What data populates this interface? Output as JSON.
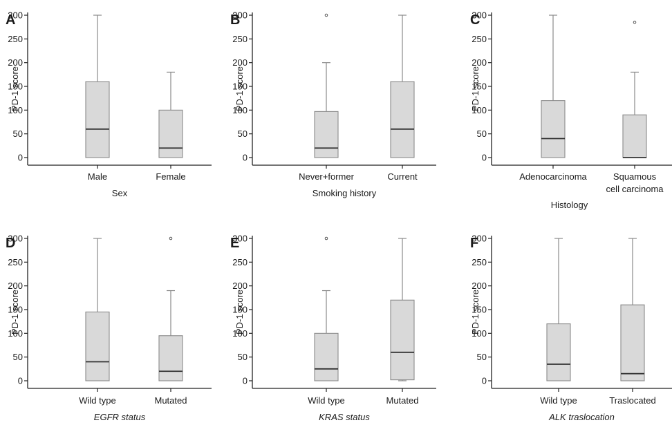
{
  "figure": {
    "background": "#ffffff",
    "box_fill": "#d9d9d9",
    "box_stroke": "#8a8a8a",
    "median_color": "#333333",
    "axis_color": "#222222"
  },
  "chart_data": [
    {
      "panel": "A",
      "type": "box",
      "ylabel": "PD-1 score",
      "xlabel": "Sex",
      "xlabel_italic": false,
      "ylim": [
        0,
        300
      ],
      "yticks": [
        0,
        50,
        100,
        150,
        200,
        250,
        300
      ],
      "categories": [
        {
          "label": [
            "Male"
          ],
          "min": 0,
          "q1": 0,
          "median": 60,
          "q3": 160,
          "max": 300,
          "outliers": []
        },
        {
          "label": [
            "Female"
          ],
          "min": 0,
          "q1": 0,
          "median": 20,
          "q3": 100,
          "max": 180,
          "outliers": []
        }
      ]
    },
    {
      "panel": "B",
      "type": "box",
      "ylabel": "PD-1 score",
      "xlabel": "Smoking history",
      "xlabel_italic": false,
      "ylim": [
        0,
        300
      ],
      "yticks": [
        0,
        50,
        100,
        150,
        200,
        250,
        300
      ],
      "categories": [
        {
          "label": [
            "Never+former"
          ],
          "min": 0,
          "q1": 0,
          "median": 20,
          "q3": 97,
          "max": 200,
          "outliers": [
            300
          ]
        },
        {
          "label": [
            "Current"
          ],
          "min": 0,
          "q1": 0,
          "median": 60,
          "q3": 160,
          "max": 300,
          "outliers": []
        }
      ]
    },
    {
      "panel": "C",
      "type": "box",
      "ylabel": "PD-1 score",
      "xlabel": "Histology",
      "xlabel_italic": false,
      "ylim": [
        0,
        300
      ],
      "yticks": [
        0,
        50,
        100,
        150,
        200,
        250,
        300
      ],
      "categories": [
        {
          "label": [
            "Adenocarcinoma"
          ],
          "min": 0,
          "q1": 0,
          "median": 40,
          "q3": 120,
          "max": 300,
          "outliers": []
        },
        {
          "label": [
            "Squamous",
            "cell carcinoma"
          ],
          "min": 0,
          "q1": 0,
          "median": 0,
          "q3": 90,
          "max": 180,
          "outliers": [
            285
          ]
        }
      ]
    },
    {
      "panel": "D",
      "type": "box",
      "ylabel": "PD-1 score",
      "xlabel": "EGFR status",
      "xlabel_italic": true,
      "ylim": [
        0,
        300
      ],
      "yticks": [
        0,
        50,
        100,
        150,
        200,
        250,
        300
      ],
      "categories": [
        {
          "label": [
            "Wild type"
          ],
          "min": 0,
          "q1": 0,
          "median": 40,
          "q3": 145,
          "max": 300,
          "outliers": []
        },
        {
          "label": [
            "Mutated"
          ],
          "min": 0,
          "q1": 0,
          "median": 20,
          "q3": 95,
          "max": 190,
          "outliers": [
            300
          ]
        }
      ]
    },
    {
      "panel": "E",
      "type": "box",
      "ylabel": "PD-1 score",
      "xlabel": "KRAS status",
      "xlabel_italic": true,
      "ylim": [
        0,
        300
      ],
      "yticks": [
        0,
        50,
        100,
        150,
        200,
        250,
        300
      ],
      "categories": [
        {
          "label": [
            "Wild type"
          ],
          "min": 0,
          "q1": 0,
          "median": 25,
          "q3": 100,
          "max": 190,
          "outliers": [
            300
          ]
        },
        {
          "label": [
            "Mutated"
          ],
          "min": 0,
          "q1": 2,
          "median": 60,
          "q3": 170,
          "max": 300,
          "outliers": []
        }
      ]
    },
    {
      "panel": "F",
      "type": "box",
      "ylabel": "PD-1 score",
      "xlabel": "ALK traslocation",
      "xlabel_italic": true,
      "ylim": [
        0,
        300
      ],
      "yticks": [
        0,
        50,
        100,
        150,
        200,
        250,
        300
      ],
      "categories": [
        {
          "label": [
            "Wild type"
          ],
          "min": 0,
          "q1": 0,
          "median": 35,
          "q3": 120,
          "max": 300,
          "outliers": []
        },
        {
          "label": [
            "Traslocated"
          ],
          "min": 0,
          "q1": 0,
          "median": 15,
          "q3": 160,
          "max": 300,
          "outliers": []
        }
      ]
    }
  ]
}
